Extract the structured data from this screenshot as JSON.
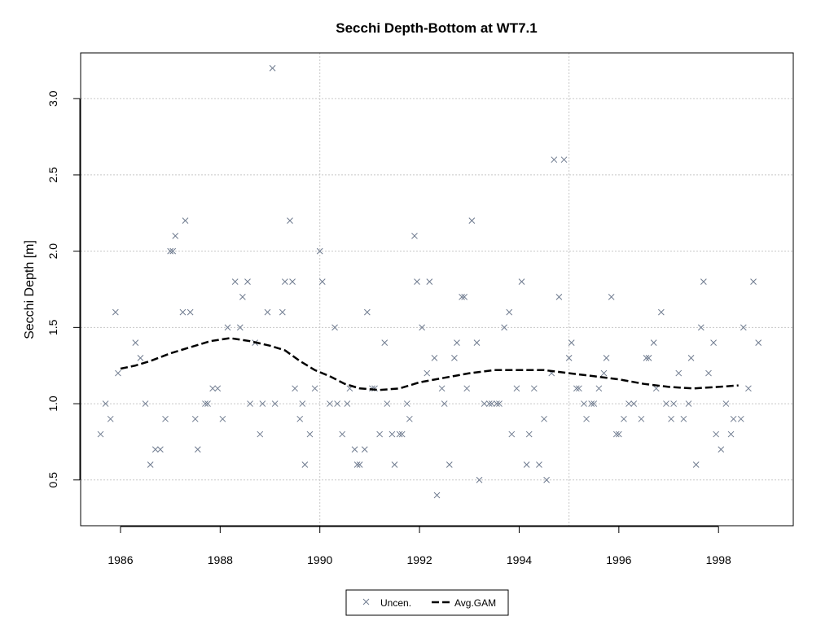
{
  "chart_data": {
    "type": "scatter",
    "title": "Secchi Depth-Bottom at WT7.1",
    "xlabel": "",
    "ylabel": "Secchi Depth [m]",
    "xlim": [
      1985.2,
      1999.5
    ],
    "ylim": [
      0.2,
      3.3
    ],
    "x_ticks": [
      1986,
      1988,
      1990,
      1992,
      1994,
      1996,
      1998
    ],
    "y_ticks": [
      0.5,
      1.0,
      1.5,
      2.0,
      2.5,
      3.0
    ],
    "x_tick_labels": [
      "1986",
      "1988",
      "1990",
      "1992",
      "1994",
      "1996",
      "1998"
    ],
    "y_tick_labels": [
      "0.5",
      "1.0",
      "1.5",
      "2.0",
      "2.5",
      "3.0"
    ],
    "grid": true,
    "legend_position": "bottom-center",
    "colors": {
      "points": "#6f7b8f",
      "gam": "#000000",
      "grid": "#c8c8c8",
      "axis": "#000000"
    },
    "series": [
      {
        "name": "Uncen.",
        "marker": "x",
        "points": [
          [
            1985.6,
            0.8
          ],
          [
            1985.7,
            1.0
          ],
          [
            1985.8,
            0.9
          ],
          [
            1985.9,
            1.6
          ],
          [
            1985.95,
            1.2
          ],
          [
            1986.3,
            1.4
          ],
          [
            1986.4,
            1.3
          ],
          [
            1986.5,
            1.0
          ],
          [
            1986.6,
            0.6
          ],
          [
            1986.7,
            0.7
          ],
          [
            1986.8,
            0.7
          ],
          [
            1986.9,
            0.9
          ],
          [
            1987.0,
            2.0
          ],
          [
            1987.05,
            2.0
          ],
          [
            1987.1,
            2.1
          ],
          [
            1987.25,
            1.6
          ],
          [
            1987.3,
            2.2
          ],
          [
            1987.4,
            1.6
          ],
          [
            1987.5,
            0.9
          ],
          [
            1987.55,
            0.7
          ],
          [
            1987.7,
            1.0
          ],
          [
            1987.75,
            1.0
          ],
          [
            1987.85,
            1.1
          ],
          [
            1987.95,
            1.1
          ],
          [
            1988.05,
            0.9
          ],
          [
            1988.15,
            1.5
          ],
          [
            1988.3,
            1.8
          ],
          [
            1988.4,
            1.5
          ],
          [
            1988.45,
            1.7
          ],
          [
            1988.55,
            1.8
          ],
          [
            1988.6,
            1.0
          ],
          [
            1988.7,
            1.4
          ],
          [
            1988.8,
            0.8
          ],
          [
            1988.85,
            1.0
          ],
          [
            1988.95,
            1.6
          ],
          [
            1989.05,
            3.2
          ],
          [
            1989.1,
            1.0
          ],
          [
            1989.25,
            1.6
          ],
          [
            1989.3,
            1.8
          ],
          [
            1989.4,
            2.2
          ],
          [
            1989.45,
            1.8
          ],
          [
            1989.5,
            1.1
          ],
          [
            1989.6,
            0.9
          ],
          [
            1989.65,
            1.0
          ],
          [
            1989.7,
            0.6
          ],
          [
            1989.8,
            0.8
          ],
          [
            1989.9,
            1.1
          ],
          [
            1990.0,
            2.0
          ],
          [
            1990.05,
            1.8
          ],
          [
            1990.2,
            1.0
          ],
          [
            1990.3,
            1.5
          ],
          [
            1990.35,
            1.0
          ],
          [
            1990.45,
            0.8
          ],
          [
            1990.55,
            1.0
          ],
          [
            1990.6,
            1.1
          ],
          [
            1990.7,
            0.7
          ],
          [
            1990.75,
            0.6
          ],
          [
            1990.8,
            0.6
          ],
          [
            1990.9,
            0.7
          ],
          [
            1990.95,
            1.6
          ],
          [
            1991.05,
            1.1
          ],
          [
            1991.1,
            1.1
          ],
          [
            1991.2,
            0.8
          ],
          [
            1991.3,
            1.4
          ],
          [
            1991.35,
            1.0
          ],
          [
            1991.45,
            0.8
          ],
          [
            1991.5,
            0.6
          ],
          [
            1991.6,
            0.8
          ],
          [
            1991.65,
            0.8
          ],
          [
            1991.75,
            1.0
          ],
          [
            1991.8,
            0.9
          ],
          [
            1991.9,
            2.1
          ],
          [
            1991.95,
            1.8
          ],
          [
            1992.05,
            1.5
          ],
          [
            1992.15,
            1.2
          ],
          [
            1992.2,
            1.8
          ],
          [
            1992.3,
            1.3
          ],
          [
            1992.35,
            0.4
          ],
          [
            1992.45,
            1.1
          ],
          [
            1992.5,
            1.0
          ],
          [
            1992.6,
            0.6
          ],
          [
            1992.7,
            1.3
          ],
          [
            1992.75,
            1.4
          ],
          [
            1992.85,
            1.7
          ],
          [
            1992.9,
            1.7
          ],
          [
            1992.95,
            1.1
          ],
          [
            1993.05,
            2.2
          ],
          [
            1993.15,
            1.4
          ],
          [
            1993.2,
            0.5
          ],
          [
            1993.3,
            1.0
          ],
          [
            1993.4,
            1.0
          ],
          [
            1993.45,
            1.0
          ],
          [
            1993.55,
            1.0
          ],
          [
            1993.6,
            1.0
          ],
          [
            1993.7,
            1.5
          ],
          [
            1993.8,
            1.6
          ],
          [
            1993.85,
            0.8
          ],
          [
            1993.95,
            1.1
          ],
          [
            1994.05,
            1.8
          ],
          [
            1994.15,
            0.6
          ],
          [
            1994.2,
            0.8
          ],
          [
            1994.3,
            1.1
          ],
          [
            1994.4,
            0.6
          ],
          [
            1994.5,
            0.9
          ],
          [
            1994.55,
            0.5
          ],
          [
            1994.65,
            1.2
          ],
          [
            1994.7,
            2.6
          ],
          [
            1994.8,
            1.7
          ],
          [
            1994.9,
            2.6
          ],
          [
            1995.0,
            1.3
          ],
          [
            1995.05,
            1.4
          ],
          [
            1995.15,
            1.1
          ],
          [
            1995.2,
            1.1
          ],
          [
            1995.3,
            1.0
          ],
          [
            1995.35,
            0.9
          ],
          [
            1995.45,
            1.0
          ],
          [
            1995.5,
            1.0
          ],
          [
            1995.6,
            1.1
          ],
          [
            1995.7,
            1.2
          ],
          [
            1995.75,
            1.3
          ],
          [
            1995.85,
            1.7
          ],
          [
            1995.95,
            0.8
          ],
          [
            1996.0,
            0.8
          ],
          [
            1996.1,
            0.9
          ],
          [
            1996.2,
            1.0
          ],
          [
            1996.3,
            1.0
          ],
          [
            1996.45,
            0.9
          ],
          [
            1996.55,
            1.3
          ],
          [
            1996.6,
            1.3
          ],
          [
            1996.7,
            1.4
          ],
          [
            1996.75,
            1.1
          ],
          [
            1996.85,
            1.6
          ],
          [
            1996.95,
            1.0
          ],
          [
            1997.05,
            0.9
          ],
          [
            1997.1,
            1.0
          ],
          [
            1997.2,
            1.2
          ],
          [
            1997.3,
            0.9
          ],
          [
            1997.4,
            1.0
          ],
          [
            1997.45,
            1.3
          ],
          [
            1997.55,
            0.6
          ],
          [
            1997.65,
            1.5
          ],
          [
            1997.7,
            1.8
          ],
          [
            1997.8,
            1.2
          ],
          [
            1997.9,
            1.4
          ],
          [
            1997.95,
            0.8
          ],
          [
            1998.05,
            0.7
          ],
          [
            1998.15,
            1.0
          ],
          [
            1998.25,
            0.8
          ],
          [
            1998.3,
            0.9
          ],
          [
            1998.45,
            0.9
          ],
          [
            1998.5,
            1.5
          ],
          [
            1998.6,
            1.1
          ],
          [
            1998.7,
            1.8
          ],
          [
            1998.8,
            1.4
          ]
        ]
      },
      {
        "name": "Avg.GAM",
        "line_style": "dashed",
        "points": [
          [
            1986.0,
            1.23
          ],
          [
            1986.3,
            1.25
          ],
          [
            1986.6,
            1.28
          ],
          [
            1987.0,
            1.33
          ],
          [
            1987.4,
            1.37
          ],
          [
            1987.8,
            1.41
          ],
          [
            1988.2,
            1.43
          ],
          [
            1988.6,
            1.41
          ],
          [
            1989.0,
            1.38
          ],
          [
            1989.3,
            1.35
          ],
          [
            1989.6,
            1.28
          ],
          [
            1989.9,
            1.22
          ],
          [
            1990.2,
            1.18
          ],
          [
            1990.5,
            1.13
          ],
          [
            1990.8,
            1.1
          ],
          [
            1991.2,
            1.09
          ],
          [
            1991.6,
            1.1
          ],
          [
            1992.0,
            1.14
          ],
          [
            1992.5,
            1.17
          ],
          [
            1993.0,
            1.2
          ],
          [
            1993.5,
            1.22
          ],
          [
            1994.0,
            1.22
          ],
          [
            1994.5,
            1.22
          ],
          [
            1995.0,
            1.2
          ],
          [
            1995.5,
            1.18
          ],
          [
            1996.0,
            1.16
          ],
          [
            1996.5,
            1.13
          ],
          [
            1997.0,
            1.11
          ],
          [
            1997.5,
            1.1
          ],
          [
            1998.0,
            1.11
          ],
          [
            1998.4,
            1.12
          ]
        ]
      }
    ]
  }
}
